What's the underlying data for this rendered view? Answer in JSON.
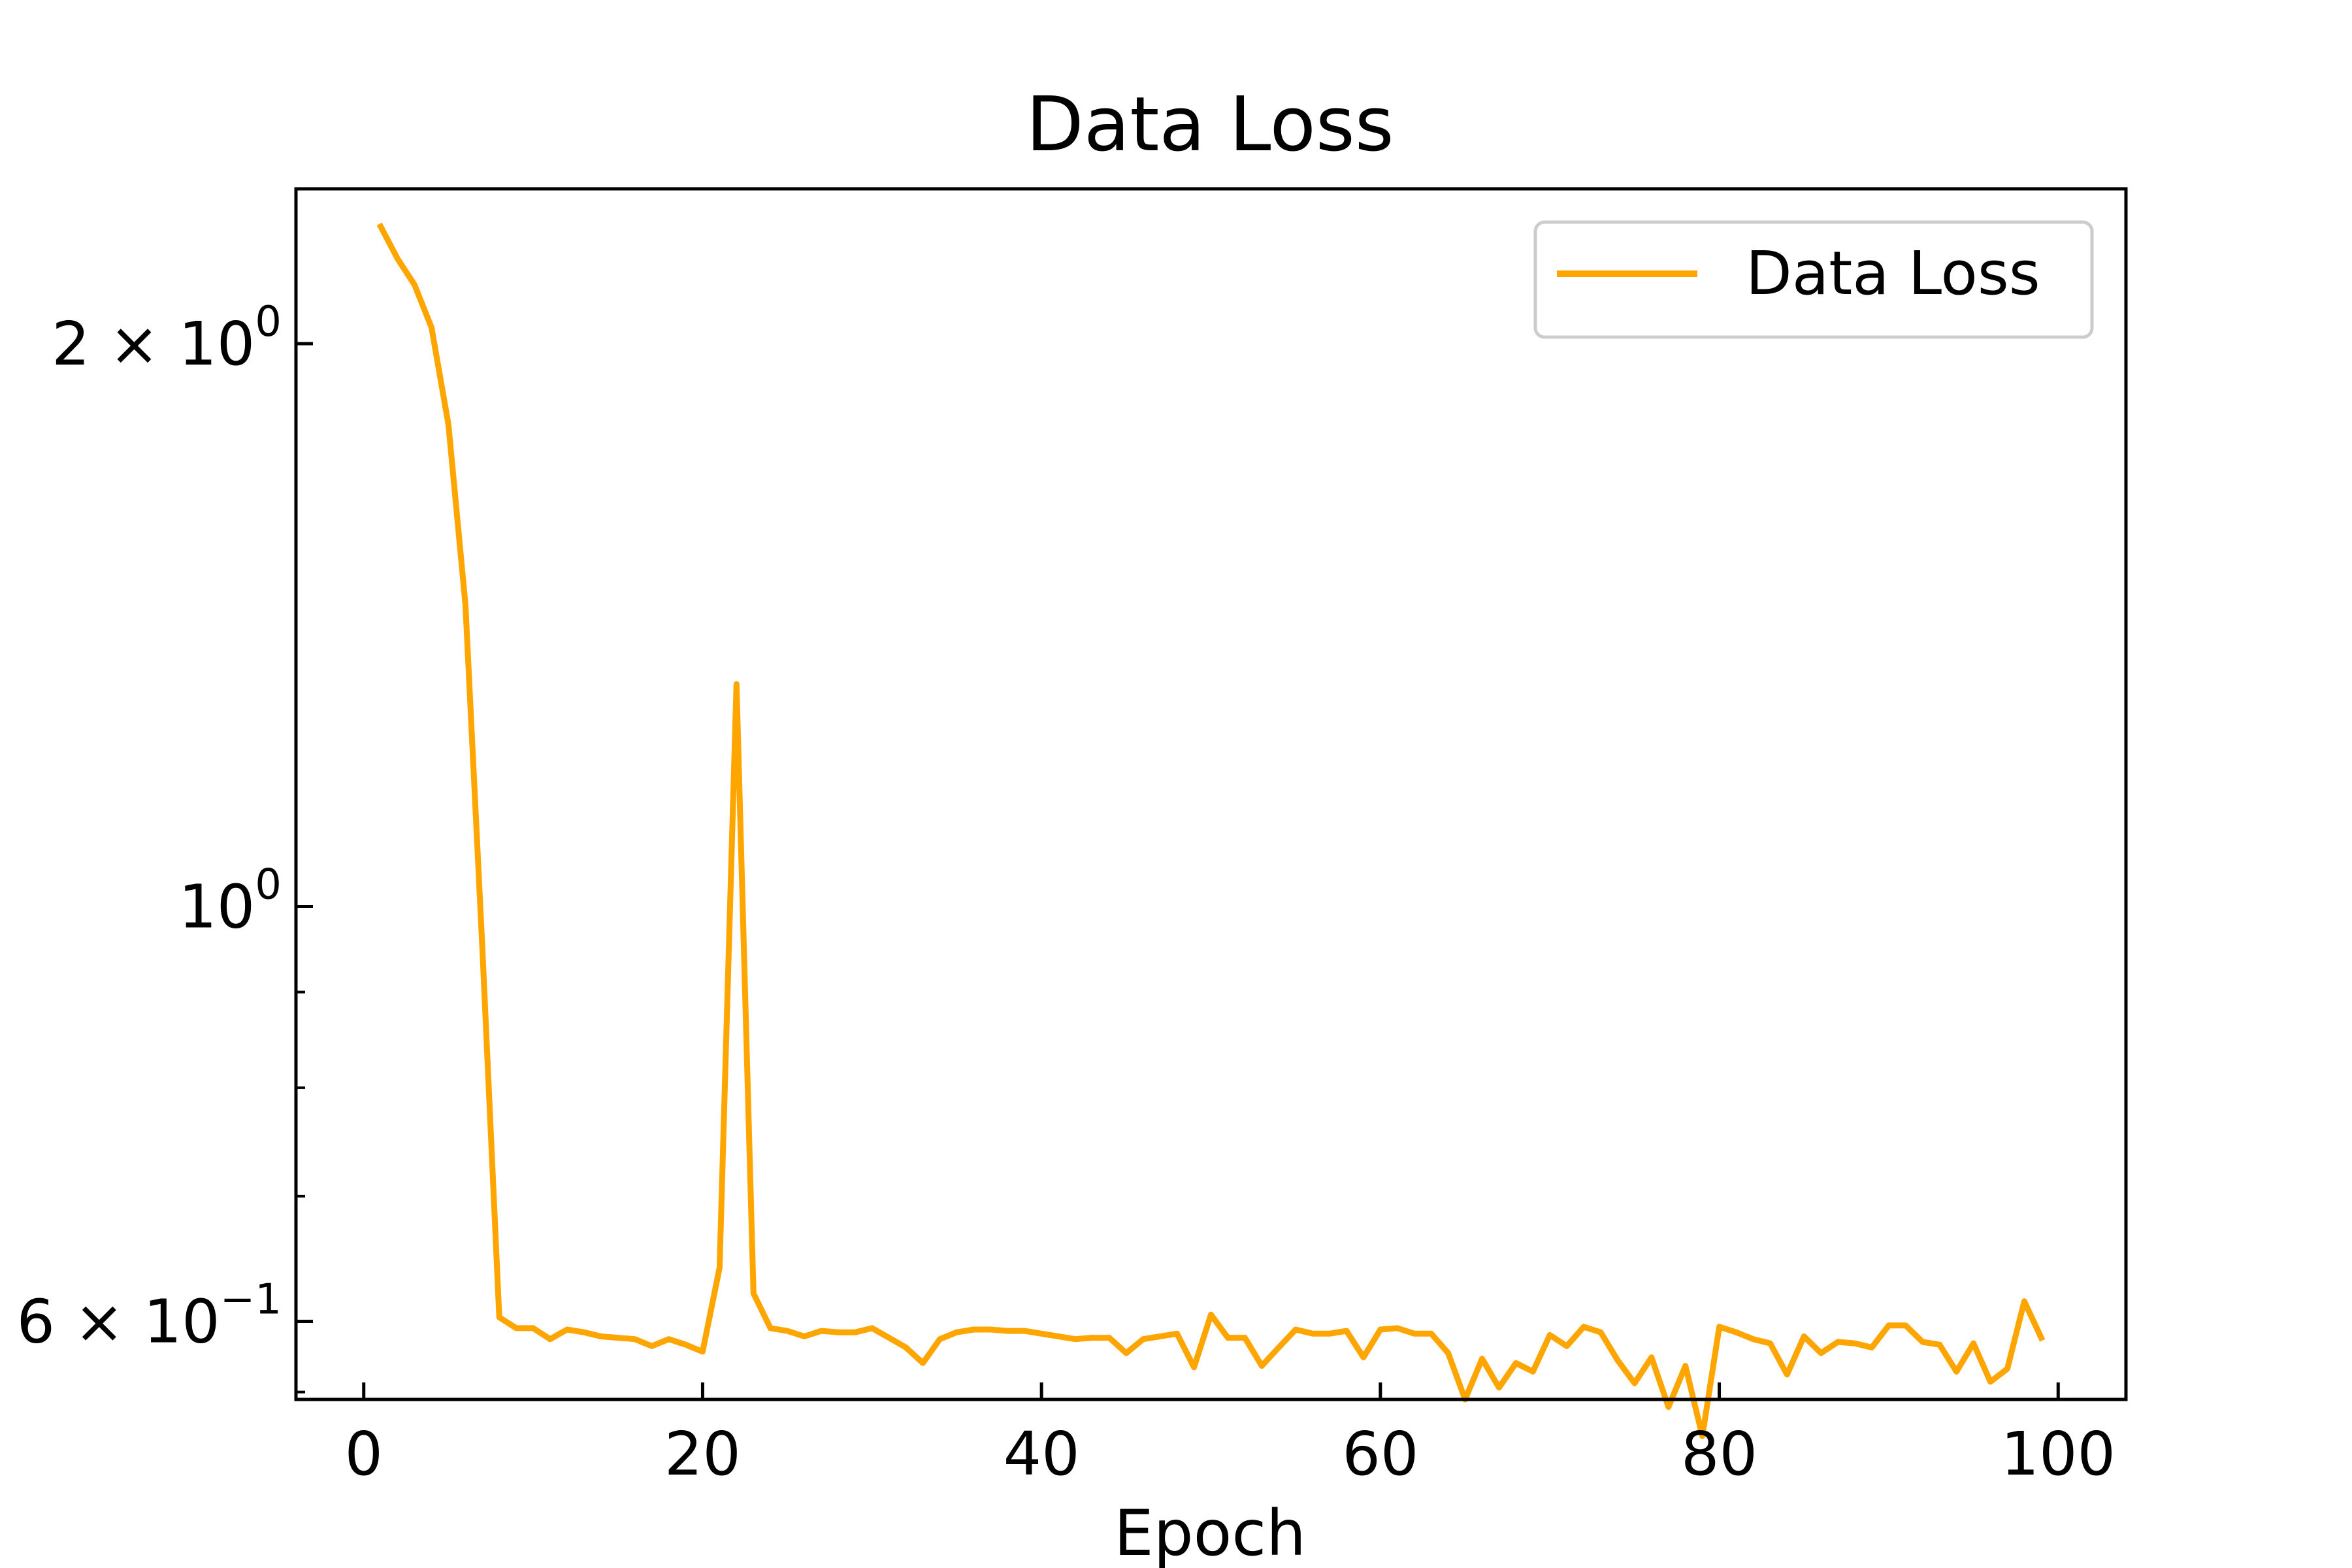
{
  "chart_data": {
    "type": "line",
    "title": "Data Loss",
    "xlabel": "Epoch",
    "ylabel": "",
    "yscale": "log",
    "xlim": [
      -4,
      104
    ],
    "ylim": [
      0.545,
      2.42
    ],
    "grid": false,
    "legend": {
      "placement": "top-right",
      "entries": [
        "Data Loss"
      ]
    },
    "colors": {
      "line": "#FFA500",
      "axes": "#000000",
      "legend_border": "#cccccc"
    },
    "x_ticks": [
      {
        "value": 0,
        "label": "0"
      },
      {
        "value": 20,
        "label": "20"
      },
      {
        "value": 40,
        "label": "40"
      },
      {
        "value": 60,
        "label": "60"
      },
      {
        "value": 80,
        "label": "80"
      },
      {
        "value": 100,
        "label": "100"
      }
    ],
    "y_major_ticks": [
      {
        "value": 2,
        "mantissa": "2 × 10",
        "exponent": "0"
      },
      {
        "value": 1,
        "mantissa": "10",
        "exponent": "0"
      },
      {
        "value": 0.6,
        "mantissa": "6 × 10",
        "exponent": "−1"
      }
    ],
    "y_minor_ticks": [
      0.7,
      0.8,
      0.9
    ],
    "series": [
      {
        "name": "Data Loss",
        "x": [
          1,
          2,
          3,
          4,
          5,
          6,
          7,
          8,
          9,
          10,
          11,
          12,
          13,
          14,
          15,
          16,
          17,
          18,
          19,
          20,
          21,
          22,
          23,
          24,
          25,
          26,
          27,
          28,
          29,
          30,
          31,
          32,
          33,
          34,
          35,
          36,
          37,
          38,
          39,
          40,
          41,
          42,
          43,
          44,
          45,
          46,
          47,
          48,
          49,
          50,
          51,
          52,
          53,
          54,
          55,
          56,
          57,
          58,
          59,
          60,
          61,
          62,
          63,
          64,
          65,
          66,
          67,
          68,
          69,
          70,
          71,
          72,
          73,
          74,
          75,
          76,
          77,
          78,
          79,
          80,
          81,
          82,
          83,
          84,
          85,
          86,
          87,
          88,
          89,
          90,
          91,
          92,
          93,
          94,
          95,
          96,
          97,
          98,
          99
        ],
        "y": [
          2.31,
          2.22,
          2.15,
          2.04,
          1.81,
          1.45,
          0.95,
          0.603,
          0.595,
          0.595,
          0.587,
          0.594,
          0.592,
          0.589,
          0.588,
          0.587,
          0.582,
          0.587,
          0.583,
          0.578,
          0.641,
          1.315,
          0.621,
          0.595,
          0.593,
          0.589,
          0.593,
          0.592,
          0.592,
          0.595,
          0.588,
          0.581,
          0.57,
          0.587,
          0.592,
          0.594,
          0.594,
          0.593,
          0.593,
          0.591,
          0.589,
          0.587,
          0.588,
          0.588,
          0.577,
          0.587,
          0.589,
          0.591,
          0.567,
          0.605,
          0.588,
          0.588,
          0.568,
          0.581,
          0.594,
          0.591,
          0.591,
          0.593,
          0.574,
          0.594,
          0.595,
          0.591,
          0.591,
          0.577,
          0.545,
          0.573,
          0.553,
          0.57,
          0.564,
          0.59,
          0.582,
          0.596,
          0.592,
          0.572,
          0.556,
          0.574,
          0.54,
          0.568,
          0.521,
          0.596,
          0.592,
          0.587,
          0.584,
          0.562,
          0.589,
          0.577,
          0.585,
          0.584,
          0.581,
          0.597,
          0.597,
          0.585,
          0.583,
          0.564,
          0.584,
          0.557,
          0.566,
          0.615,
          0.588
        ]
      }
    ]
  }
}
